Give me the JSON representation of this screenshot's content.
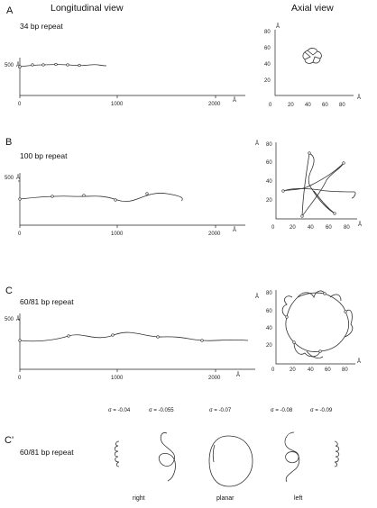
{
  "headers": {
    "longitudinal": "Longitudinal view",
    "axial": "Axial view"
  },
  "panels": [
    {
      "label": "A",
      "repeat": "34 bp repeat"
    },
    {
      "label": "B",
      "repeat": "100 bp repeat"
    },
    {
      "label": "C",
      "repeat": "60/81 bp repeat"
    },
    {
      "label": "C'",
      "repeat": "60/81 bp repeat"
    }
  ],
  "longitudinal_axis": {
    "y_tick": "500",
    "y_unit": "Å",
    "x_ticks": [
      "0",
      "1000",
      "2000"
    ],
    "x_unit": "Å"
  },
  "axial_axis": {
    "ticks": [
      "0",
      "20",
      "40",
      "60",
      "80"
    ],
    "y_ticks": [
      "20",
      "40",
      "60",
      "80"
    ],
    "unit": "Å"
  },
  "sigma_labels": [
    "σ = -0.04",
    "σ = -0.055",
    "σ = -0.07",
    "σ = -0.08",
    "σ = -0.09"
  ],
  "handedness": [
    "right",
    "planar",
    "left"
  ]
}
